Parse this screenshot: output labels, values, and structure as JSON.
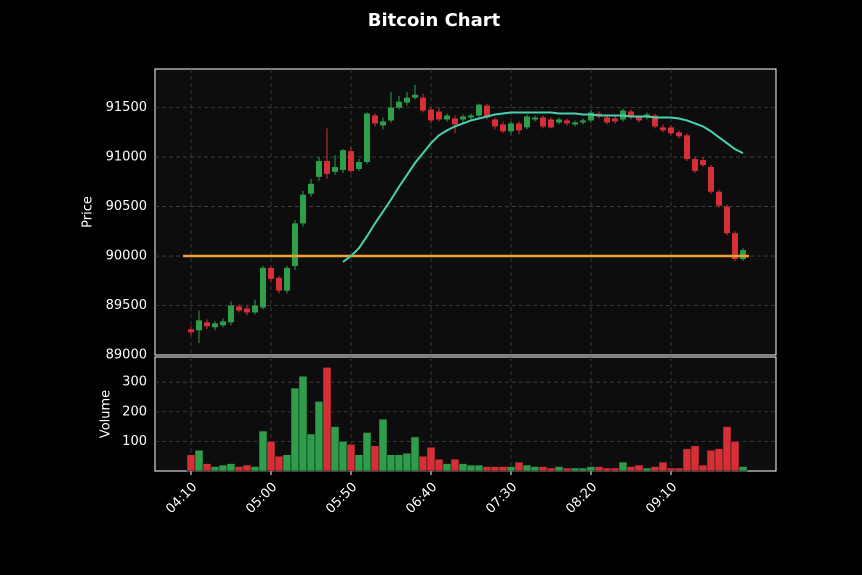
{
  "chart_data": {
    "type": "candlestick",
    "title": "Bitcoin Chart",
    "ylabel": "Price",
    "volume_label": "Volume",
    "categories": [
      "04:10",
      null,
      null,
      null,
      null,
      null,
      null,
      null,
      null,
      null,
      "05:00",
      null,
      null,
      null,
      null,
      null,
      null,
      null,
      null,
      null,
      "05:50",
      null,
      null,
      null,
      null,
      null,
      null,
      null,
      null,
      null,
      "06:40",
      null,
      null,
      null,
      null,
      null,
      null,
      null,
      null,
      null,
      "07:30",
      null,
      null,
      null,
      null,
      null,
      null,
      null,
      null,
      null,
      "08:20",
      null,
      null,
      null,
      null,
      null,
      null,
      null,
      null,
      null,
      "09:10",
      null,
      null,
      null,
      null,
      null,
      null,
      null,
      null,
      null
    ],
    "ohlc": [
      [
        89260,
        89290,
        89200,
        89230
      ],
      [
        89250,
        89450,
        89120,
        89350
      ],
      [
        89330,
        89360,
        89260,
        89290
      ],
      [
        89280,
        89340,
        89250,
        89320
      ],
      [
        89300,
        89370,
        89280,
        89340
      ],
      [
        89330,
        89540,
        89300,
        89500
      ],
      [
        89490,
        89510,
        89430,
        89450
      ],
      [
        89470,
        89500,
        89400,
        89430
      ],
      [
        89430,
        89560,
        89410,
        89500
      ],
      [
        89480,
        89900,
        89460,
        89880
      ],
      [
        89880,
        89900,
        89740,
        89770
      ],
      [
        89780,
        89800,
        89620,
        89650
      ],
      [
        89650,
        89900,
        89620,
        89880
      ],
      [
        89900,
        90360,
        89860,
        90330
      ],
      [
        90330,
        90660,
        90300,
        90620
      ],
      [
        90630,
        90780,
        90600,
        90730
      ],
      [
        90800,
        91000,
        90760,
        90960
      ],
      [
        90960,
        91290,
        90780,
        90830
      ],
      [
        90850,
        91020,
        90820,
        90900
      ],
      [
        90870,
        91080,
        90840,
        91070
      ],
      [
        91060,
        91100,
        90840,
        90860
      ],
      [
        90880,
        90980,
        90860,
        90950
      ],
      [
        90950,
        91450,
        90930,
        91440
      ],
      [
        91420,
        91440,
        91310,
        91340
      ],
      [
        91320,
        91400,
        91280,
        91360
      ],
      [
        91370,
        91660,
        91350,
        91500
      ],
      [
        91500,
        91620,
        91480,
        91560
      ],
      [
        91550,
        91660,
        91520,
        91600
      ],
      [
        91600,
        91730,
        91580,
        91630
      ],
      [
        91600,
        91640,
        91450,
        91470
      ],
      [
        91480,
        91500,
        91340,
        91370
      ],
      [
        91460,
        91500,
        91360,
        91380
      ],
      [
        91380,
        91440,
        91360,
        91420
      ],
      [
        91390,
        91420,
        91240,
        91330
      ],
      [
        91380,
        91430,
        91350,
        91410
      ],
      [
        91400,
        91440,
        91380,
        91420
      ],
      [
        91420,
        91540,
        91400,
        91530
      ],
      [
        91520,
        91540,
        91380,
        91400
      ],
      [
        91380,
        91400,
        91280,
        91310
      ],
      [
        91330,
        91360,
        91240,
        91260
      ],
      [
        91260,
        91360,
        91230,
        91340
      ],
      [
        91340,
        91360,
        91230,
        91270
      ],
      [
        91300,
        91430,
        91280,
        91410
      ],
      [
        91380,
        91420,
        91360,
        91400
      ],
      [
        91400,
        91420,
        91290,
        91310
      ],
      [
        91380,
        91400,
        91290,
        91300
      ],
      [
        91350,
        91400,
        91330,
        91380
      ],
      [
        91370,
        91390,
        91320,
        91340
      ],
      [
        91330,
        91370,
        91310,
        91350
      ],
      [
        91350,
        91390,
        91330,
        91370
      ],
      [
        91370,
        91480,
        91350,
        91450
      ],
      [
        91440,
        91460,
        91390,
        91410
      ],
      [
        91400,
        91420,
        91330,
        91350
      ],
      [
        91390,
        91410,
        91340,
        91360
      ],
      [
        91380,
        91490,
        91360,
        91470
      ],
      [
        91460,
        91480,
        91380,
        91400
      ],
      [
        91400,
        91420,
        91350,
        91370
      ],
      [
        91400,
        91450,
        91380,
        91430
      ],
      [
        91420,
        91440,
        91290,
        91310
      ],
      [
        91300,
        91330,
        91250,
        91270
      ],
      [
        91300,
        91320,
        91220,
        91240
      ],
      [
        91250,
        91270,
        91190,
        91210
      ],
      [
        91220,
        91240,
        90960,
        90980
      ],
      [
        90980,
        91000,
        90840,
        90860
      ],
      [
        90970,
        91000,
        90900,
        90920
      ],
      [
        90900,
        90920,
        90630,
        90650
      ],
      [
        90650,
        90670,
        90490,
        90510
      ],
      [
        90500,
        90520,
        90210,
        90230
      ],
      [
        90230,
        90250,
        89950,
        89970
      ],
      [
        89970,
        90080,
        89950,
        90060
      ]
    ],
    "volume": [
      55,
      70,
      25,
      15,
      20,
      25,
      15,
      20,
      15,
      135,
      100,
      50,
      55,
      280,
      320,
      125,
      235,
      350,
      150,
      100,
      90,
      55,
      130,
      85,
      175,
      55,
      55,
      60,
      115,
      50,
      80,
      40,
      25,
      40,
      25,
      20,
      20,
      15,
      15,
      15,
      15,
      30,
      20,
      15,
      15,
      10,
      15,
      10,
      10,
      10,
      15,
      15,
      10,
      10,
      30,
      15,
      20,
      10,
      15,
      30,
      10,
      10,
      75,
      85,
      20,
      70,
      75,
      150,
      100,
      15
    ],
    "ma": {
      "color": "#48d1b0",
      "values": [
        null,
        null,
        null,
        null,
        null,
        null,
        null,
        null,
        null,
        null,
        null,
        null,
        null,
        null,
        null,
        null,
        null,
        null,
        null,
        89940,
        90000,
        90080,
        90200,
        90330,
        90450,
        90570,
        90700,
        90820,
        90940,
        91040,
        91140,
        91220,
        91270,
        91310,
        91340,
        91370,
        91390,
        91410,
        91430,
        91440,
        91450,
        91450,
        91450,
        91450,
        91450,
        91450,
        91440,
        91440,
        91440,
        91430,
        91430,
        91420,
        91420,
        91420,
        91420,
        91410,
        91410,
        91410,
        91400,
        91400,
        91400,
        91390,
        91370,
        91340,
        91310,
        91260,
        91200,
        91140,
        91080,
        91040
      ]
    },
    "hline": {
      "value": 90000,
      "color": "#f0a030"
    },
    "up_color": "#2e9e4a",
    "down_color": "#d62f35",
    "ylim": [
      89000,
      91890
    ],
    "yticks": [
      89000,
      89500,
      90000,
      90500,
      91000,
      91500
    ],
    "vlim": [
      0,
      385
    ],
    "vticks": [
      100,
      200,
      300
    ],
    "grid": true
  }
}
